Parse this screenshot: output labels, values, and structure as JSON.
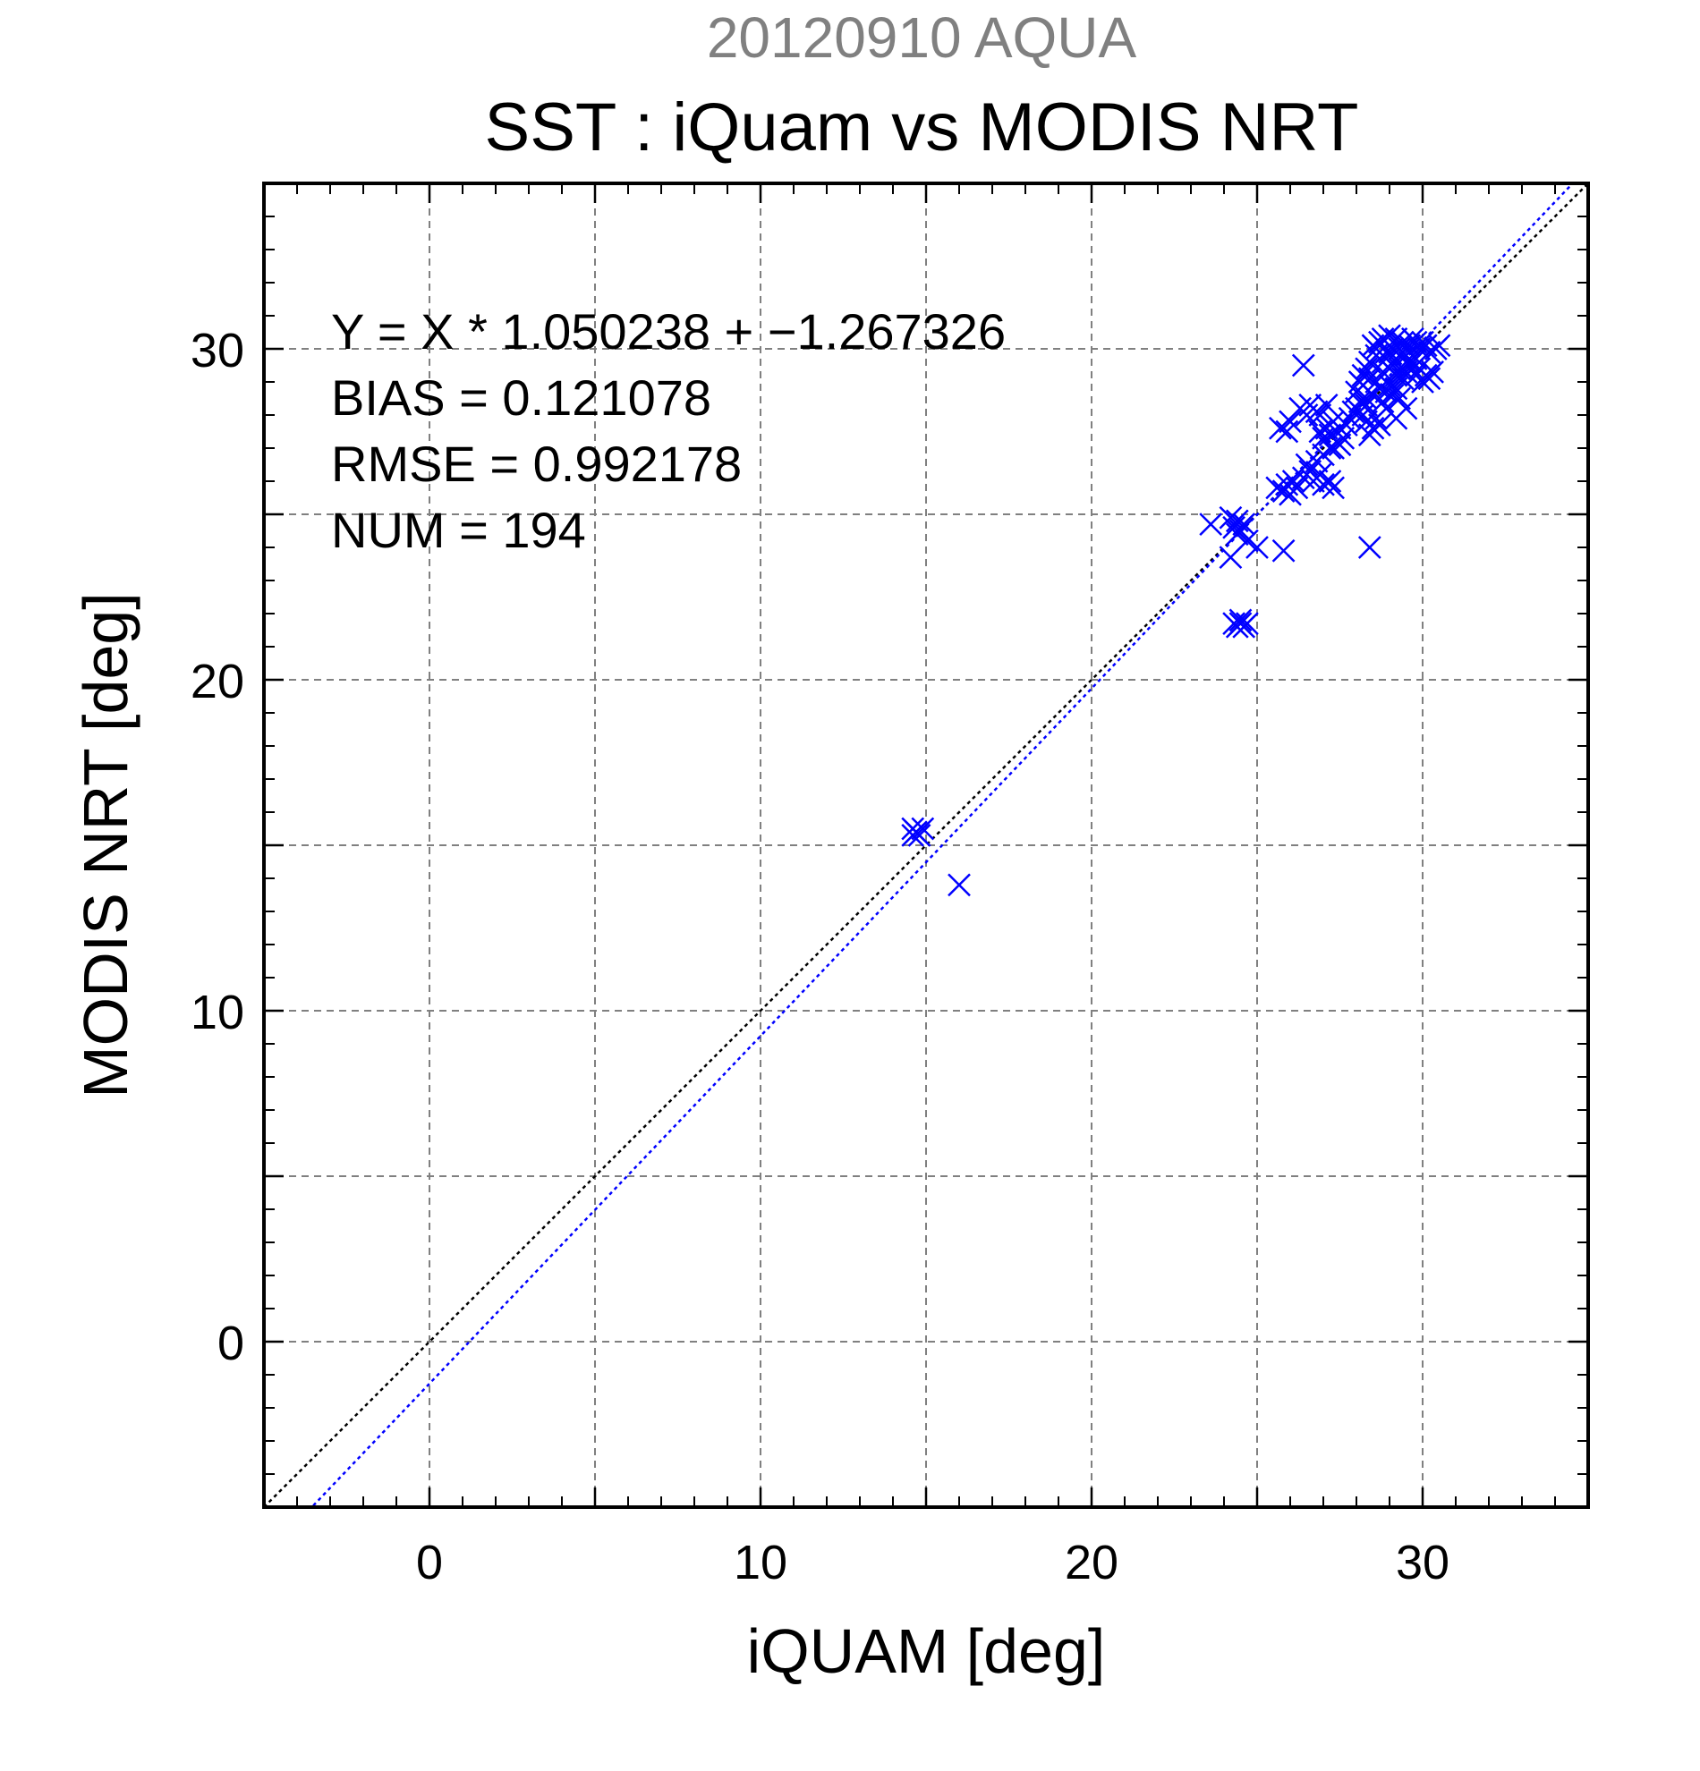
{
  "chart_data": {
    "type": "scatter",
    "suptitle": "20120910 AQUA",
    "title": "SST : iQuam vs MODIS NRT",
    "xlabel": "iQUAM [deg]",
    "ylabel": "MODIS NRT [deg]",
    "xlim": [
      -5,
      35
    ],
    "ylim": [
      -5,
      35
    ],
    "xticks": [
      0,
      10,
      20,
      30
    ],
    "yticks": [
      0,
      10,
      20,
      30
    ],
    "xtick_labels": [
      "0",
      "10",
      "20",
      "30"
    ],
    "ytick_labels": [
      "0",
      "10",
      "20",
      "30"
    ],
    "grid": true,
    "colors": {
      "points": "#0000ff",
      "fit_line": "#0000ff",
      "identity_line": "#000000",
      "grid": "#808080",
      "suptitle": "#808080"
    },
    "stats": [
      "Y = X * 1.050238 + −1.267326",
      "BIAS = 0.121078",
      "RMSE = 0.992178",
      "NUM = 194"
    ],
    "fit": {
      "slope": 1.050238,
      "intercept": -1.267326
    },
    "series": [
      {
        "marker": "x",
        "points": [
          [
            14.6,
            15.5
          ],
          [
            14.7,
            15.4
          ],
          [
            14.8,
            15.3
          ],
          [
            14.6,
            15.3
          ],
          [
            14.9,
            15.5
          ],
          [
            16.0,
            13.8
          ],
          [
            23.6,
            24.7
          ],
          [
            24.2,
            24.9
          ],
          [
            24.3,
            24.6
          ],
          [
            24.4,
            24.8
          ],
          [
            24.5,
            24.5
          ],
          [
            24.6,
            24.7
          ],
          [
            24.4,
            24.4
          ],
          [
            24.2,
            23.7
          ],
          [
            24.7,
            24.2
          ],
          [
            25.0,
            24.0
          ],
          [
            25.8,
            23.9
          ],
          [
            24.3,
            21.7
          ],
          [
            24.4,
            21.6
          ],
          [
            24.5,
            21.7
          ],
          [
            24.6,
            21.6
          ],
          [
            24.7,
            21.7
          ],
          [
            24.5,
            21.8
          ],
          [
            25.6,
            25.8
          ],
          [
            25.8,
            25.7
          ],
          [
            25.9,
            25.9
          ],
          [
            26.0,
            25.6
          ],
          [
            26.2,
            25.8
          ],
          [
            26.1,
            26.0
          ],
          [
            26.4,
            26.1
          ],
          [
            26.6,
            26.3
          ],
          [
            26.7,
            26.0
          ],
          [
            26.9,
            26.2
          ],
          [
            26.5,
            26.5
          ],
          [
            26.8,
            26.6
          ],
          [
            27.0,
            25.9
          ],
          [
            25.7,
            27.6
          ],
          [
            25.9,
            27.5
          ],
          [
            26.0,
            27.8
          ],
          [
            26.3,
            28.2
          ],
          [
            26.5,
            28.0
          ],
          [
            26.6,
            28.3
          ],
          [
            26.8,
            28.1
          ],
          [
            26.4,
            29.5
          ],
          [
            26.9,
            27.5
          ],
          [
            27.0,
            27.3
          ],
          [
            27.1,
            27.6
          ],
          [
            27.2,
            27.4
          ],
          [
            27.3,
            27.8
          ],
          [
            27.4,
            27.5
          ],
          [
            27.5,
            27.6
          ],
          [
            27.6,
            27.3
          ],
          [
            27.3,
            27.0
          ],
          [
            27.5,
            27.1
          ],
          [
            27.7,
            27.7
          ],
          [
            27.8,
            27.9
          ],
          [
            27.9,
            28.1
          ],
          [
            28.0,
            28.2
          ],
          [
            28.1,
            28.4
          ],
          [
            28.2,
            28.0
          ],
          [
            28.3,
            28.3
          ],
          [
            28.0,
            28.7
          ],
          [
            28.2,
            28.9
          ],
          [
            28.4,
            29.1
          ],
          [
            28.5,
            28.6
          ],
          [
            28.3,
            28.5
          ],
          [
            28.6,
            29.0
          ],
          [
            28.7,
            28.8
          ],
          [
            28.8,
            29.3
          ],
          [
            28.4,
            29.6
          ],
          [
            28.6,
            29.8
          ],
          [
            28.8,
            29.6
          ],
          [
            29.0,
            29.9
          ],
          [
            28.5,
            30.1
          ],
          [
            28.7,
            30.2
          ],
          [
            29.0,
            30.4
          ],
          [
            29.2,
            30.3
          ],
          [
            29.3,
            30.0
          ],
          [
            29.4,
            30.2
          ],
          [
            29.5,
            29.8
          ],
          [
            29.6,
            30.1
          ],
          [
            29.7,
            30.3
          ],
          [
            29.8,
            30.2
          ],
          [
            29.9,
            30.0
          ],
          [
            30.0,
            30.2
          ],
          [
            30.1,
            30.1
          ],
          [
            30.2,
            29.9
          ],
          [
            30.4,
            30.0
          ],
          [
            30.5,
            30.1
          ],
          [
            29.1,
            29.5
          ],
          [
            29.2,
            29.2
          ],
          [
            29.3,
            29.4
          ],
          [
            29.4,
            29.1
          ],
          [
            29.5,
            29.3
          ],
          [
            29.6,
            29.6
          ],
          [
            29.7,
            29.4
          ],
          [
            29.8,
            29.7
          ],
          [
            30.0,
            29.0
          ],
          [
            30.1,
            29.2
          ],
          [
            28.9,
            28.7
          ],
          [
            29.0,
            28.9
          ],
          [
            29.1,
            28.6
          ],
          [
            29.2,
            28.8
          ],
          [
            29.3,
            28.5
          ],
          [
            28.8,
            28.4
          ],
          [
            28.9,
            28.2
          ],
          [
            28.5,
            27.6
          ],
          [
            28.7,
            27.7
          ],
          [
            28.4,
            27.4
          ],
          [
            29.2,
            27.9
          ],
          [
            29.5,
            28.2
          ],
          [
            28.6,
            27.9
          ],
          [
            28.3,
            27.8
          ],
          [
            28.4,
            24.0
          ],
          [
            27.2,
            26.0
          ],
          [
            27.3,
            25.8
          ],
          [
            27.0,
            26.8
          ],
          [
            27.2,
            27.0
          ],
          [
            26.9,
            28.0
          ],
          [
            27.1,
            28.3
          ],
          [
            28.1,
            29.0
          ],
          [
            28.2,
            29.2
          ],
          [
            28.3,
            29.4
          ],
          [
            28.9,
            29.9
          ],
          [
            29.1,
            30.0
          ],
          [
            29.3,
            29.8
          ],
          [
            29.5,
            30.0
          ],
          [
            29.6,
            29.5
          ],
          [
            29.8,
            29.2
          ],
          [
            29.9,
            29.4
          ],
          [
            30.2,
            29.1
          ],
          [
            30.3,
            29.3
          ],
          [
            28.6,
            30.0
          ],
          [
            28.8,
            30.3
          ]
        ]
      }
    ]
  }
}
